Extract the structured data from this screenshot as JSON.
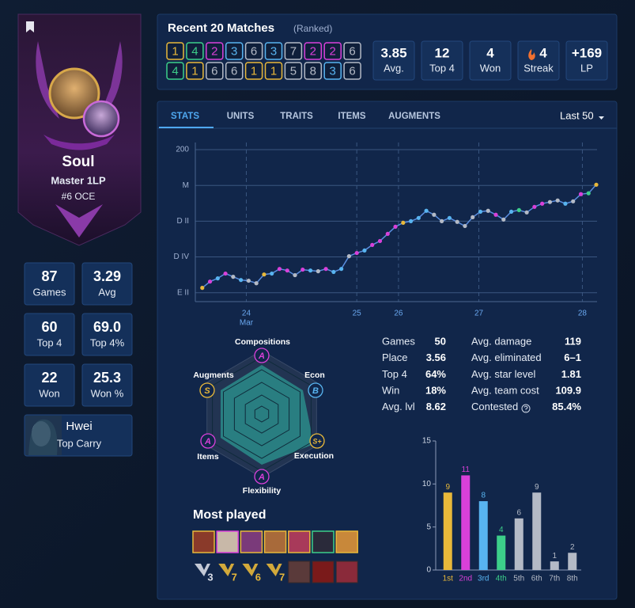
{
  "profile": {
    "name": "Soul",
    "rank": "Master 1LP",
    "ladder": "#6 OCE"
  },
  "profile_stats": [
    {
      "value": "87",
      "label": "Games"
    },
    {
      "value": "3.29",
      "label": "Avg"
    },
    {
      "value": "60",
      "label": "Top 4"
    },
    {
      "value": "69.0",
      "label": "Top 4%"
    },
    {
      "value": "22",
      "label": "Won"
    },
    {
      "value": "25.3",
      "label": "Won %"
    }
  ],
  "top_carry": {
    "name": "Hwei",
    "label": "Top Carry"
  },
  "recent": {
    "title": "Recent 20 Matches",
    "subtitle": "(Ranked)",
    "placements": [
      1,
      4,
      2,
      3,
      6,
      3,
      7,
      2,
      2,
      6,
      4,
      1,
      6,
      6,
      1,
      1,
      5,
      8,
      3,
      6
    ],
    "summary": [
      {
        "value": "3.85",
        "label": "Avg."
      },
      {
        "value": "12",
        "label": "Top 4"
      },
      {
        "value": "4",
        "label": "Won"
      },
      {
        "value": "4",
        "label": "Streak"
      },
      {
        "value": "+169",
        "label": "LP"
      }
    ]
  },
  "placement_colors": {
    "1": "#e8b83a",
    "2": "#d940d9",
    "3": "#58b4f0",
    "4": "#3ccf8a",
    "5": "#b4bac6",
    "6": "#b4bac6",
    "7": "#b4bac6",
    "8": "#b4bac6"
  },
  "tabs": [
    "STATS",
    "UNITS",
    "TRAITS",
    "ITEMS",
    "AUGMENTS"
  ],
  "filter": "Last 50",
  "radar": [
    {
      "label": "Compositions",
      "grade": "A",
      "color": "#d940d9"
    },
    {
      "label": "Econ",
      "grade": "B",
      "color": "#58b4f0"
    },
    {
      "label": "Execution",
      "grade": "S+",
      "color": "#e8b83a"
    },
    {
      "label": "Flexibility",
      "grade": "A",
      "color": "#d940d9"
    },
    {
      "label": "Items",
      "grade": "A",
      "color": "#d940d9"
    },
    {
      "label": "Augments",
      "grade": "S",
      "color": "#e8b83a"
    }
  ],
  "stats_table": {
    "left": [
      [
        "Games",
        "50"
      ],
      [
        "Place",
        "3.56"
      ],
      [
        "Top 4",
        "64%"
      ],
      [
        "Win",
        "18%"
      ],
      [
        "Avg. lvl",
        "8.62"
      ]
    ],
    "right": [
      [
        "Avg. damage",
        "119"
      ],
      [
        "Avg. eliminated",
        "6–1"
      ],
      [
        "Avg. star level",
        "1.81"
      ],
      [
        "Avg. team cost",
        "109.9"
      ],
      [
        "Contested",
        "85.4%"
      ]
    ]
  },
  "most_played": {
    "title": "Most played",
    "trait_counts": [
      "3",
      "7",
      "6",
      "7"
    ]
  },
  "chart_data": [
    {
      "type": "line",
      "values": [
        -573,
        -538,
        -520,
        -493,
        -511,
        -529,
        -533,
        -547,
        -498,
        -493,
        -467,
        -476,
        -502,
        -471,
        -476,
        -480,
        -467,
        -484,
        -467,
        -396,
        -378,
        -364,
        -333,
        -311,
        -271,
        -231,
        -209,
        -200,
        -182,
        -142,
        -164,
        -200,
        -182,
        -204,
        -227,
        -178,
        -147,
        -142,
        -164,
        -191,
        -147,
        -138,
        -151,
        -120,
        -102,
        -93,
        -84,
        -102,
        -89,
        -49,
        -44,
        4
      ],
      "point_colors": [
        "#e8b83a",
        "#d940d9",
        "#58b4f0",
        "#d940d9",
        "#b4bac6",
        "#58b4f0",
        "#b4bac6",
        "#b4bac6",
        "#e8b83a",
        "#58b4f0",
        "#d940d9",
        "#d940d9",
        "#b4bac6",
        "#d940d9",
        "#58b4f0",
        "#b4bac6",
        "#d940d9",
        "#58b4f0",
        "#58b4f0",
        "#b4bac6",
        "#d940d9",
        "#58b4f0",
        "#d940d9",
        "#d940d9",
        "#d940d9",
        "#d940d9",
        "#e8b83a",
        "#58b4f0",
        "#58b4f0",
        "#58b4f0",
        "#b4bac6",
        "#b4bac6",
        "#58b4f0",
        "#b4bac6",
        "#b4bac6",
        "#b4bac6",
        "#58b4f0",
        "#b4bac6",
        "#d940d9",
        "#b4bac6",
        "#58b4f0",
        "#3ccf8a",
        "#b4bac6",
        "#d940d9",
        "#d940d9",
        "#b4bac6",
        "#b4bac6",
        "#58b4f0",
        "#b4bac6",
        "#d940d9",
        "#3ccf8a",
        "#e8b83a"
      ],
      "line_color": "#5a8ee0",
      "ylim": [
        -650,
        240
      ],
      "yticks": [
        {
          "value": -600,
          "label": "E II"
        },
        {
          "value": -400,
          "label": "D IV"
        },
        {
          "value": -200,
          "label": "D II"
        },
        {
          "value": 0,
          "label": "M"
        },
        200
      ],
      "xlim": [
        -0.9,
        51.1
      ],
      "xticks": [
        {
          "value": 5.7,
          "label": "24"
        },
        {
          "value": 20,
          "label": "25"
        },
        {
          "value": 25.4,
          "label": "26"
        },
        {
          "value": 35.8,
          "label": "27"
        },
        {
          "value": 49.2,
          "label": "28"
        }
      ],
      "x_sublabel": "Mar",
      "grid": true
    },
    {
      "type": "bar",
      "categories": [
        "1st",
        "2nd",
        "3rd",
        "4th",
        "5th",
        "6th",
        "7th",
        "8th"
      ],
      "values": [
        9,
        11,
        8,
        4,
        6,
        9,
        1,
        2
      ],
      "colors": [
        "#e8b83a",
        "#d940d9",
        "#58b4f0",
        "#3ccf8a",
        "#b4bac6",
        "#b4bac6",
        "#b4bac6",
        "#b4bac6"
      ],
      "ylim": [
        0,
        15
      ],
      "yticks": [
        0,
        5,
        10,
        15
      ]
    }
  ]
}
